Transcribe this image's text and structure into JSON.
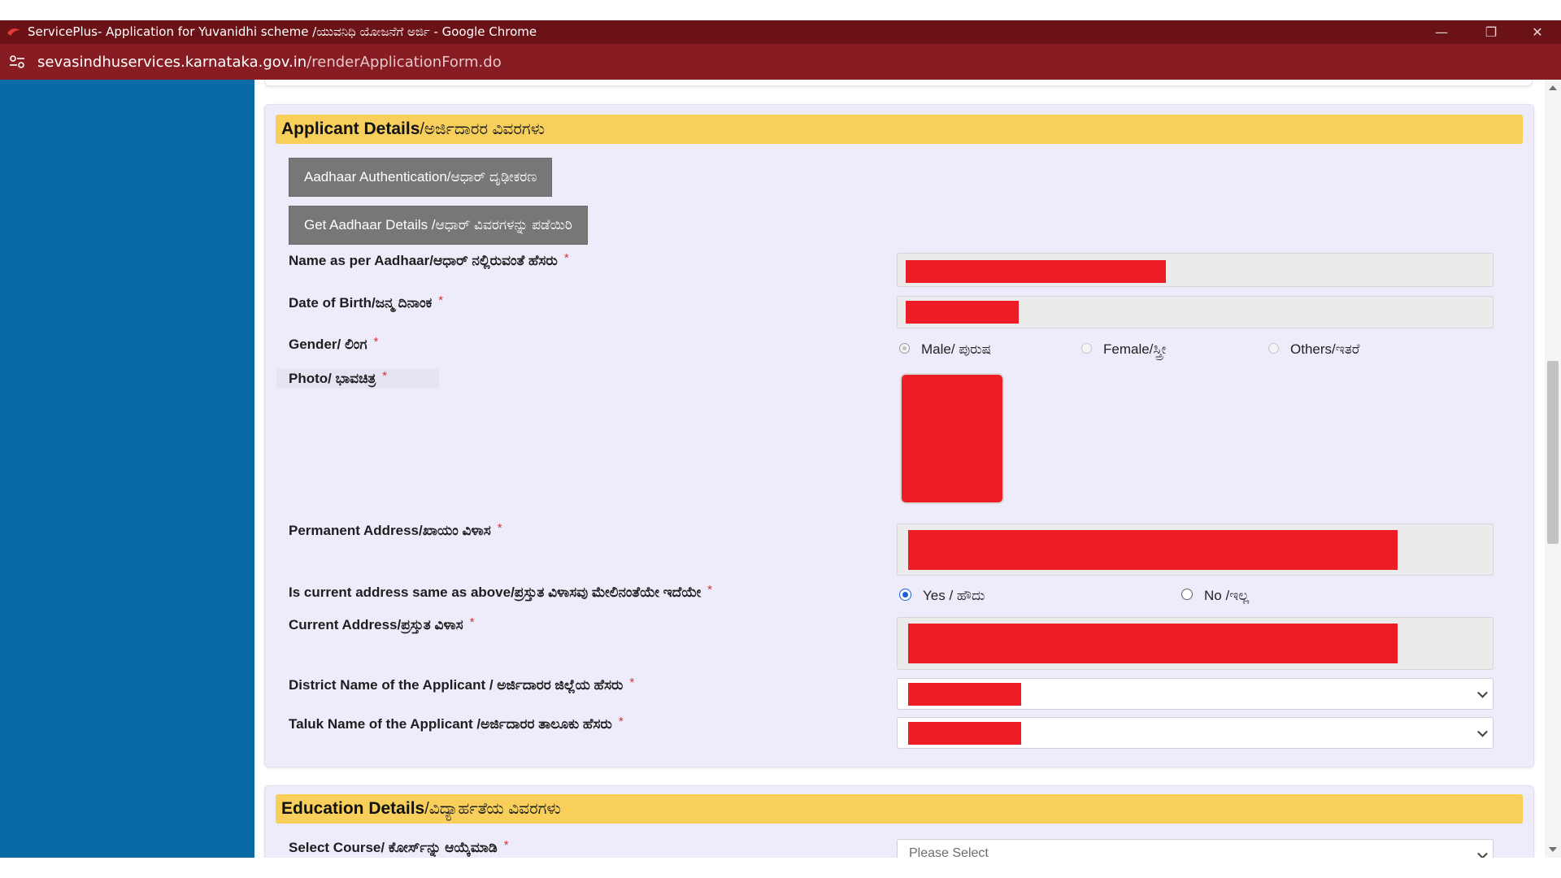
{
  "window": {
    "title": "ServicePlus- Application for Yuvanidhi scheme /ಯುವನಿಧಿ ಯೋಜನೆಗೆ ಅರ್ಜಿ - Google Chrome",
    "minimize_label": "—",
    "maximize_label": "❐",
    "close_label": "✕"
  },
  "addressbar": {
    "host": "sevasindhuservices.karnataka.gov.in",
    "path": "/renderApplicationForm.do"
  },
  "applicant_section": {
    "title_en": "Applicant Details",
    "title_kn": "/ಅರ್ಜಿದಾರರ ವಿವರಗಳು",
    "aadhaar_auth_button": "Aadhaar Authentication/ಆಧಾರ್ ದೃಢೀಕರಣ",
    "get_aadhaar_button": "Get Aadhaar Details /ಆಧಾರ್ ವಿವರಗಳನ್ನು ಪಡೆಯಿರಿ",
    "required_mark": "*",
    "name_label": "Name as per Aadhaar/ಆಧಾರ್ ನಲ್ಲಿರುವಂತೆ ಹೆಸರು",
    "dob_label": "Date of Birth/ಜನ್ಮ ದಿನಾಂಕ",
    "gender_label": "Gender/ ಲಿಂಗ",
    "gender_options": [
      "Male/ ಪುರುಷ",
      "Female/ಸ್ತ್ರೀ",
      "Others/ಇತರೆ"
    ],
    "photo_label": "Photo/ ಭಾವಚಿತ್ರ",
    "permanent_address_label": "Permanent Address/ಖಾಯಂ ವಿಳಾಸ",
    "same_address_label": "Is current address same as above/ಪ್ರಸ್ತುತ ವಿಳಾಸವು ಮೇಲಿನಂತೆಯೇ ಇದೆಯೇ",
    "same_address_options": [
      "Yes / ಹೌದು",
      "No /ಇಲ್ಲ"
    ],
    "same_address_selected": "Yes / ಹೌದು",
    "current_address_label": "Current Address/ಪ್ರಸ್ತುತ ವಿಳಾಸ",
    "district_label": "District Name of the Applicant / ಅರ್ಜಿದಾರರ ಜಿಲ್ಲೆಯ ಹೆಸರು",
    "taluk_label": "Taluk Name of the Applicant /ಅರ್ಜಿದಾರರ ತಾಲೂಕು ಹೆಸರು"
  },
  "education_section": {
    "title_en": "Education Details",
    "title_kn": "/ವಿದ್ಯಾರ್ಹತೆಯ ವಿವರಗಳು",
    "course_label": "Select Course/ ಕೋರ್ಸ್‌ನ್ನು ಆಯ್ಕೆಮಾಡಿ",
    "course_placeholder": "Please Select"
  },
  "colors": {
    "titlebar": "#6b1216",
    "addressbar": "#871d22",
    "sidebar": "#0a6aa8",
    "section_header": "#f7cf5a",
    "panel": "#eeebfa",
    "redaction": "#ee1c25",
    "button": "#777777"
  }
}
